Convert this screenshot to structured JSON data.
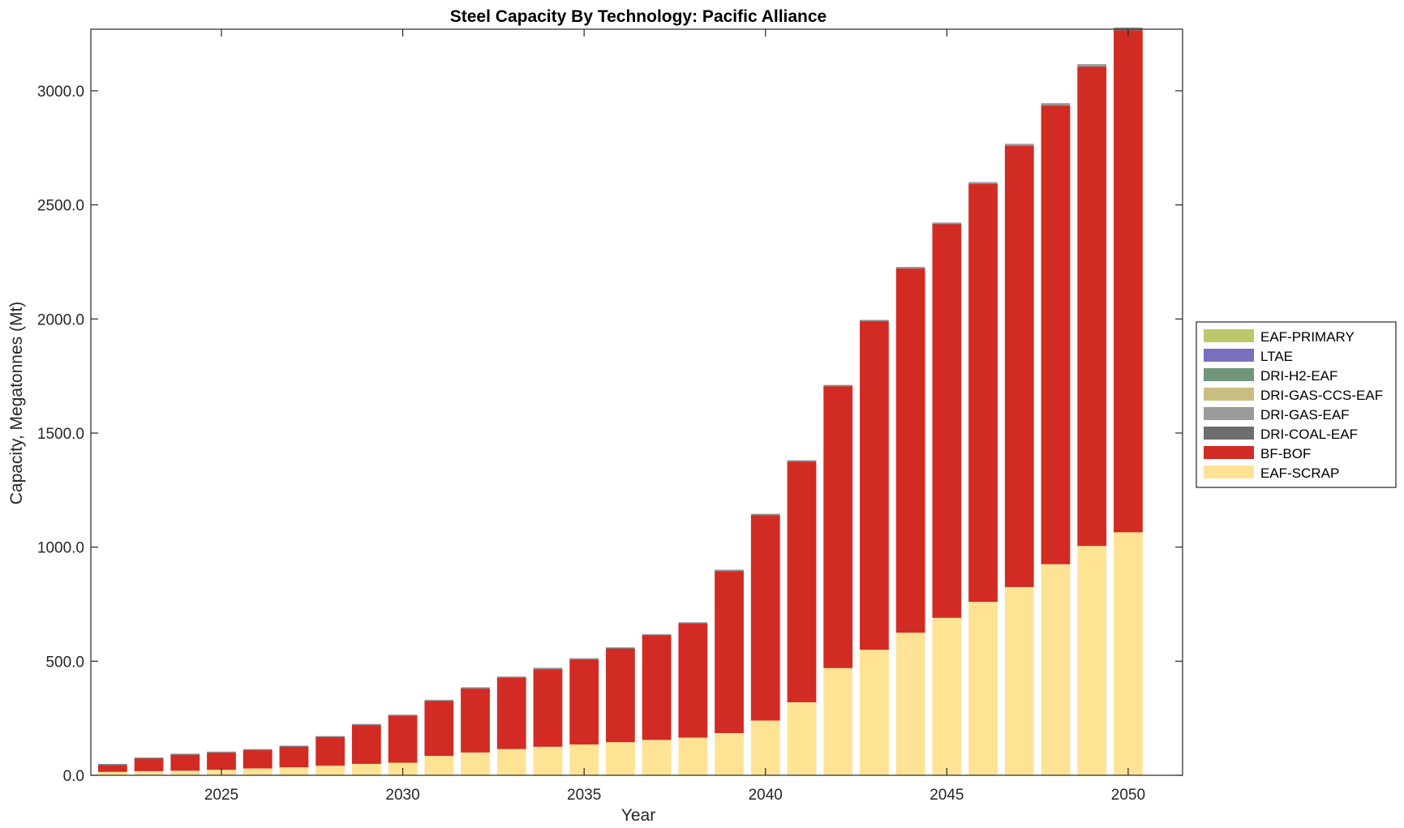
{
  "chart_data": {
    "type": "bar",
    "stacked": true,
    "title": "Steel Capacity By Technology: Pacific Alliance",
    "xlabel": "Year",
    "ylabel": "Capacity, Megatonnes (Mt)",
    "ylim": [
      0,
      3270
    ],
    "xlim": [
      2021.4,
      2051.5
    ],
    "yticks": [
      0,
      500,
      1000,
      1500,
      2000,
      2500,
      3000
    ],
    "ytick_labels": [
      "0.0",
      "500.0",
      "1000.0",
      "1500.0",
      "2000.0",
      "2500.0",
      "3000.0"
    ],
    "xticks": [
      2025,
      2030,
      2035,
      2040,
      2045,
      2050
    ],
    "xtick_labels": [
      "2025",
      "2030",
      "2035",
      "2040",
      "2045",
      "2050"
    ],
    "grid": false,
    "legend_position": "right",
    "categories": [
      2022,
      2023,
      2024,
      2025,
      2026,
      2027,
      2028,
      2029,
      2030,
      2031,
      2032,
      2033,
      2034,
      2035,
      2036,
      2037,
      2038,
      2039,
      2040,
      2041,
      2042,
      2043,
      2044,
      2045,
      2046,
      2047,
      2048,
      2049,
      2050
    ],
    "series": [
      {
        "name": "EAF-SCRAP",
        "color": "#FFE394",
        "values": [
          15,
          18,
          20,
          24,
          30,
          35,
          42,
          50,
          55,
          85,
          100,
          115,
          125,
          135,
          145,
          155,
          165,
          185,
          240,
          320,
          470,
          550,
          625,
          690,
          760,
          825,
          925,
          1005,
          1065
        ]
      },
      {
        "name": "BF-BOF",
        "color": "#D12B24",
        "values": [
          28,
          55,
          70,
          75,
          80,
          90,
          125,
          170,
          205,
          240,
          280,
          312,
          340,
          372,
          410,
          458,
          500,
          710,
          900,
          1055,
          1235,
          1440,
          1596,
          1725,
          1831,
          1933,
          2010,
          2100,
          2200
        ]
      },
      {
        "name": "DRI-COAL-EAF",
        "color": "#6E6E6E",
        "values": [
          5,
          3,
          3,
          3,
          3,
          3,
          3,
          3,
          3,
          3,
          3,
          3,
          3,
          3,
          3,
          3,
          3,
          3,
          3,
          3,
          3,
          3,
          3,
          3,
          3,
          3,
          3,
          3,
          3
        ]
      },
      {
        "name": "DRI-GAS-EAF",
        "color": "#9B9B9B",
        "values": [
          2,
          2,
          2,
          2,
          2,
          2,
          2,
          2,
          3,
          3,
          3,
          3,
          3,
          3,
          3,
          3,
          3,
          3,
          3,
          3,
          3,
          3,
          4,
          5,
          6,
          7,
          8,
          9,
          10
        ]
      },
      {
        "name": "DRI-GAS-CCS-EAF",
        "color": "#C8BE80",
        "values": [
          0,
          0,
          0,
          0,
          0,
          0,
          0,
          0,
          0,
          0,
          0,
          0,
          0,
          0,
          0,
          0,
          0,
          0,
          0,
          0,
          0,
          0,
          0,
          0,
          0,
          0,
          0,
          0,
          0
        ]
      },
      {
        "name": "DRI-H2-EAF",
        "color": "#72967A",
        "values": [
          0,
          0,
          0,
          0,
          0,
          0,
          0,
          0,
          0,
          0,
          0,
          0,
          0,
          0,
          0,
          0,
          0,
          0,
          0,
          0,
          0,
          0,
          0,
          0,
          0,
          0,
          0,
          0,
          0
        ]
      },
      {
        "name": "LTAE",
        "color": "#7670BE",
        "values": [
          0,
          0,
          0,
          0,
          0,
          0,
          0,
          0,
          0,
          0,
          0,
          0,
          0,
          0,
          0,
          0,
          0,
          0,
          0,
          0,
          0,
          0,
          0,
          0,
          0,
          0,
          0,
          0,
          0
        ]
      },
      {
        "name": "EAF-PRIMARY",
        "color": "#BCC86A",
        "values": [
          0,
          0,
          0,
          0,
          0,
          0,
          0,
          0,
          0,
          0,
          0,
          0,
          0,
          0,
          0,
          0,
          0,
          0,
          0,
          0,
          0,
          0,
          0,
          0,
          0,
          0,
          0,
          0,
          0
        ]
      }
    ],
    "legend_order": [
      "EAF-PRIMARY",
      "LTAE",
      "DRI-H2-EAF",
      "DRI-GAS-CCS-EAF",
      "DRI-GAS-EAF",
      "DRI-COAL-EAF",
      "BF-BOF",
      "EAF-SCRAP"
    ]
  }
}
